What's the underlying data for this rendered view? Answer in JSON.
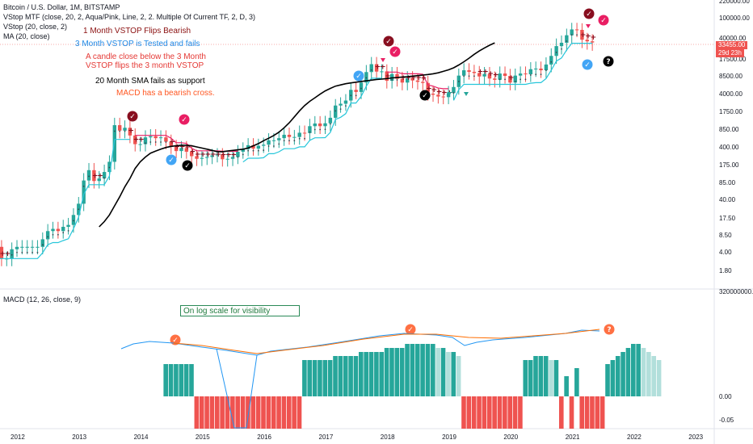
{
  "header": {
    "symbol_line": "Bitcoin / U.S. Dollar, 1M, BITSTAMP",
    "indicators": [
      "VStop MTF (close, 20, 2, Aqua/Pink, Line, 2, 2. Multiple Of Current TF, 2, D, 3)",
      "VStop (20, close, 2)",
      "MA (20, close)"
    ],
    "macd_label": "MACD (12, 26, close, 9)"
  },
  "annotations": {
    "flip": "1 Month VSTOP Flips Bearish",
    "tested": "3 Month VSTOP is Tested and fails",
    "candle1": "A candle close below the 3 Month",
    "candle2": "VSTOP flips the 3 month VSTOP",
    "sma": "20 Month SMA fails as support",
    "macd": "MACD has a bearish cross.",
    "log_note": "On log scale for visibility"
  },
  "price_tags": {
    "price": "33455.00",
    "countdown": "29d 23h"
  },
  "colors": {
    "up": "#26a69a",
    "down": "#ef5350",
    "aqua": "#26c6da",
    "pink": "#e91e63",
    "sma": "#000000",
    "darkred": "#880e1f",
    "macd_line": "#2196f3",
    "signal_line": "#ff6d00",
    "hist_up_strong": "#26a69a",
    "hist_up_weak": "#b2dfdb",
    "hist_down_strong": "#ef5350",
    "hist_down_weak": "#ffcdd2"
  },
  "chart_data": [
    {
      "type": "candlestick",
      "title": "Bitcoin / U.S. Dollar, 1M, BITSTAMP",
      "scale": "log",
      "y_ticks": [
        "100000.00",
        "40000.00",
        "17500.00",
        "8500.00",
        "4000.00",
        "1750.00",
        "850.00",
        "400.00",
        "175.00",
        "85.00",
        "40.00",
        "17.50",
        "8.50",
        "4.00",
        "1.80"
      ],
      "x_ticks": [
        "2012",
        "2013",
        "2014",
        "2015",
        "2016",
        "2017",
        "2018",
        "2019",
        "2020",
        "2021",
        "2022",
        "2023"
      ],
      "series": [
        {
          "name": "BTC monthly close (approx.)",
          "x_start": "2011-09",
          "values": [
            5,
            3,
            3,
            4.5,
            5,
            5,
            5,
            5,
            5,
            7,
            10,
            11,
            10,
            12,
            13,
            20,
            33,
            92,
            140,
            90,
            100,
            130,
            200,
            1000,
            800,
            900,
            650,
            450,
            450,
            600,
            630,
            580,
            600,
            500,
            400,
            330,
            380,
            320,
            260,
            230,
            240,
            250,
            270,
            280,
            225,
            230,
            250,
            320,
            360,
            430,
            370,
            420,
            440,
            530,
            530,
            580,
            670,
            610,
            610,
            730,
            720,
            960,
            1070,
            960,
            1080,
            1350,
            2300,
            2500,
            2900,
            4700,
            4300,
            6400,
            10000,
            14000,
            10200,
            10300,
            6900,
            9200,
            7500,
            6400,
            7700,
            7000,
            6600,
            6300,
            4000,
            3800,
            3500,
            3400,
            4100,
            5300,
            8600,
            10800,
            10100,
            9600,
            8300,
            9200,
            7600,
            7200,
            9400,
            8500,
            6400,
            8600,
            9400,
            9100,
            11300,
            11600,
            10800,
            13800,
            19700,
            29000,
            33100,
            45200,
            58900,
            57700,
            37300,
            35000,
            33455
          ]
        },
        {
          "name": "MA (20, close)",
          "x_start": "2013-05",
          "values": [
            12,
            15,
            20,
            30,
            45,
            70,
            100,
            150,
            200,
            250,
            300,
            330,
            360,
            390,
            410,
            420,
            430,
            430,
            420,
            400,
            380,
            360,
            340,
            320,
            320,
            330,
            340,
            350,
            360,
            380,
            420,
            460,
            520,
            580,
            650,
            750,
            900,
            1100,
            1400,
            1800,
            2300,
            2800,
            3300,
            3900,
            4500,
            5000,
            5500,
            5800,
            6100,
            6300,
            6500,
            6700,
            6900,
            7100,
            7300,
            7400,
            7600,
            7800,
            7900,
            8100,
            8200,
            8400,
            8600,
            8800,
            9000,
            9300,
            9700,
            10300,
            11000,
            12000,
            13500,
            15500,
            18000,
            21000,
            24000,
            27000,
            30000,
            33000
          ]
        }
      ]
    },
    {
      "type": "bar",
      "title": "MACD (12, 26, close, 9)",
      "y_ticks": [
        "0.00",
        "-0.05"
      ],
      "series": [
        {
          "name": "MACD histogram (approx., log-scale)",
          "values": [
            0.08,
            0.08,
            0.08,
            0.08,
            0.08,
            0.08,
            -0.05,
            -0.05,
            -0.05,
            -0.05,
            -0.05,
            -0.05,
            -0.05,
            -0.05,
            -0.05,
            -0.05,
            -0.05,
            -0.05,
            -0.05,
            -0.05,
            -0.05,
            -0.05,
            -0.05,
            -0.05,
            -0.05,
            -0.05,
            -0.05,
            0.09,
            0.09,
            0.09,
            0.09,
            0.09,
            0.09,
            0.1,
            0.1,
            0.1,
            0.1,
            0.1,
            0.11,
            0.11,
            0.11,
            0.11,
            0.11,
            0.12,
            0.12,
            0.12,
            0.12,
            0.13,
            0.13,
            0.13,
            0.13,
            0.13,
            0.13,
            0.12,
            0.12,
            0.11,
            0.11,
            0.1,
            -0.05,
            -0.05,
            -0.05,
            -0.05,
            -0.05,
            -0.05,
            -0.05,
            -0.05,
            -0.05,
            -0.05,
            -0.05,
            -0.05,
            0.09,
            0.09,
            0.1,
            0.1,
            0.1,
            0.09,
            0.09,
            -0.05,
            0.05,
            -0.05,
            0.07,
            -0.05,
            -0.05,
            -0.05,
            -0.05,
            -0.05,
            0.08,
            0.09,
            0.1,
            0.11,
            0.12,
            0.13,
            0.13,
            0.12,
            0.11,
            0.1,
            0.09
          ]
        }
      ]
    }
  ]
}
